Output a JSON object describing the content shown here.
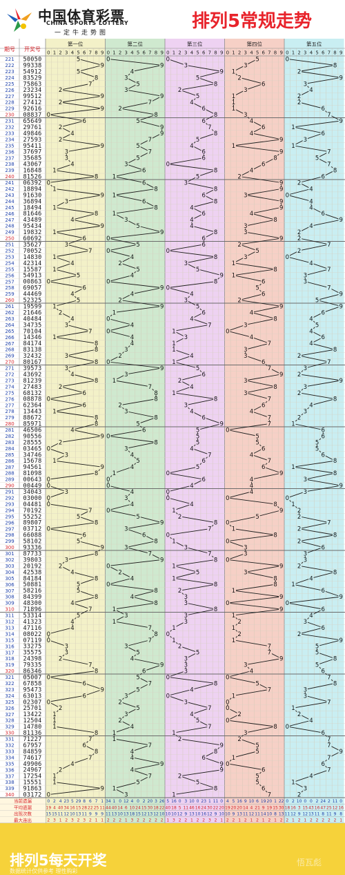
{
  "header": {
    "logo_cn": "中国体育彩票",
    "logo_en": "CHINA SPORTS LOTTERY",
    "logo_sub": "一定牛走势图",
    "title": "排列5常规走势"
  },
  "footer": {
    "title": "排列5每天开奖",
    "note": "数据统计仅供参考 理性购彩",
    "watermark": "悟瓦彪"
  },
  "colors": {
    "positions": [
      "#f3f1c8",
      "#cfe9cf",
      "#eed2f2",
      "#f6d0c6",
      "#c9eef2"
    ],
    "header_bg": "#ffffff",
    "title": "#e8232b",
    "label_red": "#d6262c",
    "stats_red": "#d6262c",
    "stats_blue": "#1d3fa8"
  },
  "chart_data": {
    "type": "table",
    "title": "排列5常规走势",
    "col_headers": {
      "issue": "期号",
      "number": "开奖号"
    },
    "position_labels": [
      "第一位",
      "第二位",
      "第三位",
      "第四位",
      "第五位"
    ],
    "digits": [
      "0",
      "1",
      "2",
      "3",
      "4",
      "5",
      "6",
      "7",
      "8",
      "9"
    ],
    "rows": [
      {
        "issue": "221",
        "number": "50050"
      },
      {
        "issue": "222",
        "number": "99338"
      },
      {
        "issue": "223",
        "number": "54912"
      },
      {
        "issue": "224",
        "number": "83529"
      },
      {
        "issue": "225",
        "number": "75863"
      },
      {
        "issue": "226",
        "number": "23234"
      },
      {
        "issue": "227",
        "number": "99512"
      },
      {
        "issue": "228",
        "number": "27412"
      },
      {
        "issue": "229",
        "number": "92616"
      },
      {
        "issue": "230",
        "number": "08837"
      },
      {
        "issue": "231",
        "number": "65649"
      },
      {
        "issue": "232",
        "number": "29761"
      },
      {
        "issue": "233",
        "number": "49846"
      },
      {
        "issue": "234",
        "number": "27593"
      },
      {
        "issue": "235",
        "number": "95411"
      },
      {
        "issue": "236",
        "number": "37697"
      },
      {
        "issue": "237",
        "number": "35685"
      },
      {
        "issue": "238",
        "number": "43067"
      },
      {
        "issue": "239",
        "number": "16848"
      },
      {
        "issue": "240",
        "number": "81526"
      },
      {
        "issue": "241",
        "number": "06392"
      },
      {
        "issue": "242",
        "number": "18894"
      },
      {
        "issue": "243",
        "number": "91630"
      },
      {
        "issue": "244",
        "number": "36894"
      },
      {
        "issue": "245",
        "number": "18494"
      },
      {
        "issue": "246",
        "number": "81646"
      },
      {
        "issue": "247",
        "number": "43489"
      },
      {
        "issue": "248",
        "number": "95434"
      },
      {
        "issue": "249",
        "number": "19832"
      },
      {
        "issue": "250",
        "number": "60692"
      },
      {
        "issue": "251",
        "number": "35627"
      },
      {
        "issue": "252",
        "number": "70052"
      },
      {
        "issue": "253",
        "number": "14830"
      },
      {
        "issue": "254",
        "number": "42314"
      },
      {
        "issue": "255",
        "number": "15587"
      },
      {
        "issue": "256",
        "number": "54913"
      },
      {
        "issue": "257",
        "number": "00863"
      },
      {
        "issue": "258",
        "number": "69057"
      },
      {
        "issue": "259",
        "number": "44469"
      },
      {
        "issue": "260",
        "number": "52325"
      },
      {
        "issue": "261",
        "number": "19599"
      },
      {
        "issue": "262",
        "number": "21646"
      },
      {
        "issue": "263",
        "number": "40484"
      },
      {
        "issue": "264",
        "number": "34735"
      },
      {
        "issue": "265",
        "number": "70104"
      },
      {
        "issue": "266",
        "number": "14346"
      },
      {
        "issue": "267",
        "number": "84174"
      },
      {
        "issue": "268",
        "number": "83138"
      },
      {
        "issue": "269",
        "number": "32432"
      },
      {
        "issue": "270",
        "number": "80167"
      },
      {
        "issue": "271",
        "number": "39573"
      },
      {
        "issue": "272",
        "number": "43692"
      },
      {
        "issue": "273",
        "number": "81239"
      },
      {
        "issue": "274",
        "number": "27483"
      },
      {
        "issue": "275",
        "number": "68132"
      },
      {
        "issue": "276",
        "number": "08878"
      },
      {
        "issue": "277",
        "number": "62364"
      },
      {
        "issue": "278",
        "number": "13443"
      },
      {
        "issue": "279",
        "number": "88672"
      },
      {
        "issue": "280",
        "number": "85971"
      },
      {
        "issue": "281",
        "number": "46506"
      },
      {
        "issue": "282",
        "number": "90556"
      },
      {
        "issue": "283",
        "number": "28555"
      },
      {
        "issue": "284",
        "number": "03465"
      },
      {
        "issue": "285",
        "number": "34746"
      },
      {
        "issue": "286",
        "number": "15678"
      },
      {
        "issue": "287",
        "number": "94561"
      },
      {
        "issue": "288",
        "number": "81098"
      },
      {
        "issue": "289",
        "number": "00643"
      },
      {
        "issue": "290",
        "number": "00449"
      },
      {
        "issue": "291",
        "number": "34043"
      },
      {
        "issue": "292",
        "number": "03000"
      },
      {
        "issue": "293",
        "number": "04481"
      },
      {
        "issue": "294",
        "number": "70192"
      },
      {
        "issue": "295",
        "number": "55252"
      },
      {
        "issue": "296",
        "number": "89807"
      },
      {
        "issue": "297",
        "number": "03712"
      },
      {
        "issue": "298",
        "number": "66088"
      },
      {
        "issue": "299",
        "number": "58102"
      },
      {
        "issue": "300",
        "number": "93336"
      },
      {
        "issue": "301",
        "number": "87733"
      },
      {
        "issue": "302",
        "number": "39803"
      },
      {
        "issue": "303",
        "number": "20192"
      },
      {
        "issue": "304",
        "number": "42538"
      },
      {
        "issue": "305",
        "number": "84184"
      },
      {
        "issue": "306",
        "number": "50881"
      },
      {
        "issue": "307",
        "number": "58216"
      },
      {
        "issue": "308",
        "number": "84399"
      },
      {
        "issue": "309",
        "number": "48300"
      },
      {
        "issue": "310",
        "number": "71896"
      },
      {
        "issue": "311",
        "number": "53314"
      },
      {
        "issue": "312",
        "number": "41323"
      },
      {
        "issue": "313",
        "number": "47116"
      },
      {
        "issue": "314",
        "number": "08022"
      },
      {
        "issue": "315",
        "number": "07119"
      },
      {
        "issue": "316",
        "number": "33275"
      },
      {
        "issue": "317",
        "number": "35575"
      },
      {
        "issue": "318",
        "number": "24398"
      },
      {
        "issue": "319",
        "number": "79335"
      },
      {
        "issue": "320",
        "number": "86346"
      },
      {
        "issue": "321",
        "number": "05007"
      },
      {
        "issue": "322",
        "number": "67858"
      },
      {
        "issue": "323",
        "number": "95473"
      },
      {
        "issue": "324",
        "number": "63013"
      },
      {
        "issue": "325",
        "number": "02307"
      },
      {
        "issue": "326",
        "number": "25701"
      },
      {
        "issue": "327",
        "number": "13422"
      },
      {
        "issue": "328",
        "number": "12504"
      },
      {
        "issue": "329",
        "number": "14780"
      },
      {
        "issue": "330",
        "number": "81136"
      },
      {
        "issue": "331",
        "number": "71227"
      },
      {
        "issue": "332",
        "number": "67957"
      },
      {
        "issue": "333",
        "number": "84859"
      },
      {
        "issue": "334",
        "number": "74617"
      },
      {
        "issue": "335",
        "number": "49906"
      },
      {
        "issue": "336",
        "number": "24967"
      },
      {
        "issue": "337",
        "number": "17254"
      },
      {
        "issue": "338",
        "number": "15551"
      },
      {
        "issue": "339",
        "number": "91863"
      },
      {
        "issue": "340",
        "number": "03172"
      }
    ],
    "stats": [
      {
        "label": "当前遗漏",
        "values": [
          0,
          2,
          4,
          23,
          5,
          29,
          8,
          6,
          7,
          1,
          34,
          1,
          0,
          12,
          4,
          0,
          2,
          20,
          3,
          26,
          5,
          16,
          0,
          3,
          10,
          0,
          23,
          1,
          11,
          0,
          4,
          5,
          16,
          9,
          10,
          6,
          19,
          20,
          1,
          22,
          0,
          2,
          10,
          0,
          0,
          2,
          24,
          2,
          11,
          0
        ]
      },
      {
        "label": "平均遗漏",
        "values": [
          19,
          4,
          40,
          34,
          16,
          15,
          28,
          22,
          25,
          11,
          44,
          40,
          14,
          6,
          10,
          24,
          15,
          30,
          18,
          22,
          40,
          18,
          5,
          11,
          46,
          16,
          24,
          30,
          22,
          20,
          19,
          20,
          20,
          14,
          4,
          21,
          9,
          19,
          15,
          30,
          18,
          16,
          3,
          15,
          43,
          16,
          47,
          25,
          12,
          16
        ]
      },
      {
        "label": "出现次数",
        "values": [
          15,
          15,
          11,
          12,
          10,
          13,
          11,
          9,
          9,
          9,
          11,
          13,
          10,
          13,
          18,
          15,
          12,
          13,
          12,
          10,
          10,
          10,
          12,
          9,
          13,
          10,
          16,
          12,
          9,
          10,
          10,
          9,
          13,
          11,
          12,
          11,
          14,
          10,
          8,
          13,
          11,
          12,
          9,
          12,
          13,
          11,
          8,
          11,
          9,
          8
        ]
      },
      {
        "label": "最大连出",
        "values": [
          2,
          3,
          1,
          2,
          3,
          2,
          3,
          2,
          1,
          1,
          2,
          2,
          2,
          1,
          3,
          2,
          2,
          2,
          2,
          2,
          1,
          3,
          2,
          2,
          1,
          2,
          2,
          3,
          2,
          1,
          2,
          2,
          1,
          2,
          1,
          2,
          1,
          2,
          1,
          2,
          2,
          1,
          2,
          1,
          2,
          2,
          2,
          2,
          2,
          1
        ]
      }
    ]
  }
}
